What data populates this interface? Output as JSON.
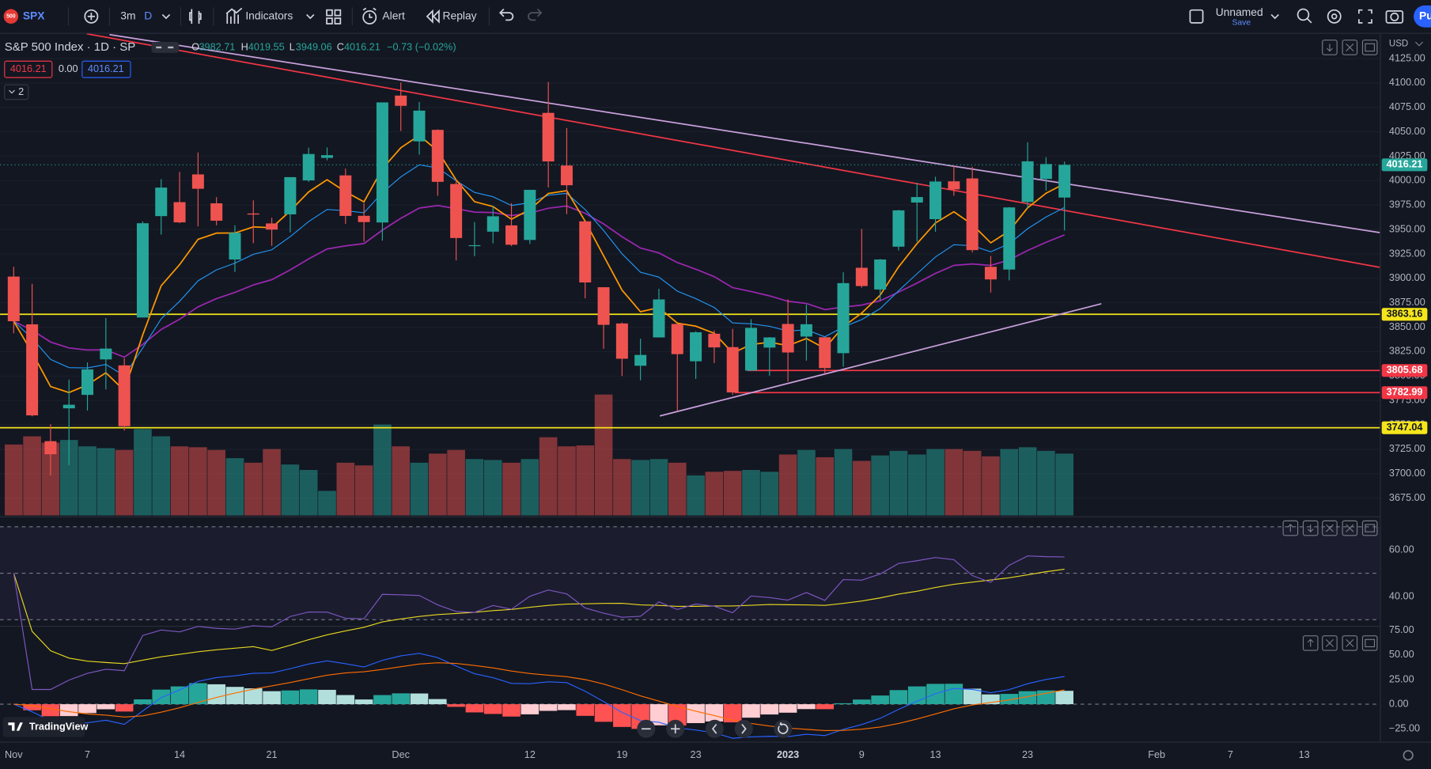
{
  "toolbar": {
    "badge": "500",
    "symbol": "SPX",
    "interval": "3m",
    "interval_unit": "D",
    "indicators": "Indicators",
    "alert": "Alert",
    "replay": "Replay",
    "layout_name": "Unnamed",
    "layout_save": "Save",
    "publish": "Pu"
  },
  "legend": {
    "title": "S&P 500 Index · 1D · SP",
    "ohlc": [
      {
        "key": "O",
        "value": "3982.71"
      },
      {
        "key": "H",
        "value": "4019.55"
      },
      {
        "key": "L",
        "value": "3949.06"
      },
      {
        "key": "C",
        "value": "4016.21"
      }
    ],
    "change": "−0.73 (−0.02%)",
    "bid": "4016.21",
    "spread": "0.00",
    "ask": "4016.21",
    "studies": "2"
  },
  "branding": "TradingView",
  "chart_data": [
    {
      "type": "candlestick",
      "currency": "USD",
      "categories": [
        "Nov",
        null,
        null,
        null,
        "7",
        null,
        null,
        null,
        null,
        "14",
        null,
        null,
        null,
        null,
        "21",
        null,
        null,
        null,
        null,
        null,
        null,
        "Dec",
        null,
        null,
        null,
        null,
        null,
        null,
        "12",
        null,
        null,
        null,
        null,
        "19",
        null,
        null,
        null,
        "23",
        null,
        null,
        null,
        null,
        "2023",
        null,
        null,
        null,
        "9",
        null,
        null,
        null,
        "13",
        null,
        null,
        null,
        null,
        "23",
        null,
        null,
        null,
        null,
        null,
        null,
        "Feb",
        null,
        null,
        null,
        "7",
        null,
        null,
        null,
        "13"
      ],
      "open": [
        3901.8,
        3852.9,
        3733.3,
        3766.9,
        3780.7,
        3817,
        3810.9,
        3859.9,
        3963.7,
        3978,
        4006.4,
        3976.8,
        3919.3,
        3966.4,
        3956.2,
        3965.5,
        4000.3,
        4023.3,
        4005.4,
        3964,
        3957.2,
        4087.1,
        4040.2,
        4052,
        3996.6,
        3933.3,
        3947.8,
        3954.2,
        3939.3,
        4069.4,
        4015.5,
        3958.4,
        3890.9,
        3853.8,
        3810.5,
        3839.5,
        3853.3,
        3815.1,
        3843.3,
        3829.6,
        3805.5,
        3829.1,
        3853.3,
        3840.4,
        3839.7,
        3823.4,
        3910.8,
        3888.6,
        3932.4,
        3977.6,
        3960.6,
        3999.3,
        4002.3,
        3911.8,
        3909,
        3978.1,
        4001.7,
        3982.71,
        null,
        null,
        null,
        null,
        null,
        null,
        null,
        null,
        null,
        null,
        null,
        null,
        null
      ],
      "high": [
        3911.8,
        3894.4,
        3750.6,
        3796.3,
        3813.9,
        3859.4,
        3818.2,
        3958.3,
        4001.5,
        4009,
        4028.8,
        3983.1,
        3954.3,
        3979.9,
        3962,
        4003.5,
        4033.8,
        4034,
        4012.3,
        3976.8,
        4080.1,
        4100.5,
        4080.5,
        4052.5,
        4001.5,
        3957.6,
        3974.2,
        3977,
        3990.7,
        4101,
        4053.8,
        3958.4,
        3890.9,
        3854.9,
        3838.2,
        3889.3,
        3853.3,
        3845.8,
        3846.7,
        3848.3,
        3858.2,
        3839.9,
        3878.5,
        3873.2,
        3839.7,
        3906.2,
        3950.6,
        3919.8,
        3970.1,
        3997.8,
        4004,
        4015.4,
        4014.2,
        3922.9,
        3973,
        4039.3,
        4023.9,
        4019.55,
        null,
        null,
        null,
        null,
        null,
        null,
        null,
        null,
        null,
        null,
        null,
        null,
        null
      ],
      "low": [
        3843.8,
        3758.7,
        3698.2,
        3708.8,
        3764.7,
        3786.3,
        3744.2,
        3859.9,
        3944.8,
        3956.4,
        3953.2,
        3954.3,
        3906.5,
        3936,
        3933.3,
        3947,
        3998.7,
        4020.8,
        3955.8,
        3937.7,
        3938.6,
        4050.9,
        4026.6,
        3984.5,
        3918.4,
        3922.7,
        3935.8,
        3933,
        3935.3,
        3993,
        3965.7,
        3879.5,
        3827.9,
        3800,
        3795.6,
        3839.5,
        3764.5,
        3797,
        3813.2,
        3780.8,
        3805.5,
        3800.3,
        3794.3,
        3815.8,
        3802.4,
        3809.6,
        3890.4,
        3877.3,
        3928.5,
        3937.6,
        3947.7,
        3984.6,
        3926.6,
        3885.5,
        3897.9,
        3971.6,
        3989.8,
        3949.06,
        null,
        null,
        null,
        null,
        null,
        null,
        null,
        null,
        null,
        null,
        null,
        null,
        null
      ],
      "close": [
        3856.1,
        3759.7,
        3719.9,
        3770.6,
        3806.8,
        3828.1,
        3748.6,
        3956.4,
        3992.9,
        3957.3,
        3991.7,
        3959,
        3946.6,
        3965.3,
        3949.9,
        4003.6,
        4027.3,
        4026.1,
        3963.9,
        3957.6,
        4080.1,
        4076.6,
        4071.7,
        3998.8,
        3941.3,
        3933.9,
        3963.5,
        3934.4,
        3990.6,
        4019.7,
        3995.3,
        3895.8,
        3852.4,
        3817.7,
        3821.6,
        3878.4,
        3822.4,
        3844.8,
        3829.3,
        3783.2,
        3849.3,
        3839.5,
        3824.1,
        3853,
        3808.1,
        3895.1,
        3892.1,
        3919.3,
        3969.6,
        3983.2,
        3999.1,
        3991,
        3928.9,
        3898.9,
        3972.6,
        4019.8,
        4017,
        4016.21,
        null,
        null,
        null,
        null,
        null,
        null,
        null,
        null,
        null,
        null,
        null,
        null,
        null
      ],
      "volume": [
        78,
        87,
        80,
        83,
        76,
        74,
        72,
        95,
        87,
        76,
        75,
        72,
        63,
        58,
        73,
        56,
        50,
        27,
        58,
        55,
        100,
        76,
        58,
        68,
        72,
        62,
        61,
        58,
        62,
        86,
        76,
        77,
        133,
        62,
        61,
        62,
        58,
        44,
        48,
        49,
        50,
        48,
        67,
        72,
        64,
        73,
        60,
        66,
        71,
        67,
        73,
        73,
        71,
        65,
        73,
        75,
        71,
        68,
        null,
        null,
        null,
        null,
        null,
        null,
        null,
        null,
        null,
        null,
        null,
        null,
        null
      ],
      "volume_lim": [
        0,
        530
      ],
      "ylim": [
        3657.3,
        4150.4
      ],
      "yticks": [
        {
          "value": 4125,
          "label": "4125.00"
        },
        {
          "value": 4100,
          "label": "4100.00"
        },
        {
          "value": 4075,
          "label": "4075.00"
        },
        {
          "value": 4050,
          "label": "4050.00"
        },
        {
          "value": 4025,
          "label": "4025.00"
        },
        {
          "value": 4000,
          "label": "4000.00"
        },
        {
          "value": 3975,
          "label": "3975.00"
        },
        {
          "value": 3950,
          "label": "3950.00"
        },
        {
          "value": 3925,
          "label": "3925.00"
        },
        {
          "value": 3900,
          "label": "3900.00"
        },
        {
          "value": 3875,
          "label": "3875.00"
        },
        {
          "value": 3850,
          "label": "3850.00"
        },
        {
          "value": 3825,
          "label": "3825.00"
        },
        {
          "value": 3800,
          "label": "3800.00"
        },
        {
          "value": 3775,
          "label": "3775.00"
        },
        {
          "value": 3750,
          "label": "3750.00"
        },
        {
          "value": 3725,
          "label": "3725.00"
        },
        {
          "value": 3700,
          "label": "3700.00"
        },
        {
          "value": 3675,
          "label": "3675.00"
        }
      ],
      "up_color": "#26a69a",
      "down_color": "#ef5350",
      "last_price": 4016.21,
      "price_lines": [
        {
          "price": 3863.16,
          "color": "#f5e51b",
          "from": -1
        },
        {
          "price": 3805.68,
          "color": "#f23645",
          "from": 39.8
        },
        {
          "price": 3782.99,
          "color": "#f23645",
          "from": 39.1
        },
        {
          "price": 3747.04,
          "color": "#f5e51b",
          "from": -1
        }
      ],
      "trendlines": [
        {
          "color": "#c9a0dc",
          "points": [
            [
              5.2,
              4149.5
            ],
            [
              74.1,
              3946.8
            ]
          ]
        },
        {
          "color": "#f23645",
          "points": [
            [
              3.96,
              4150.4
            ],
            [
              74.1,
              3911.3
            ]
          ]
        },
        {
          "color": "#c9a0dc",
          "points": [
            [
              35.05,
              3759.1
            ],
            [
              59,
              3874
            ]
          ]
        }
      ]
    },
    {
      "type": "rsi",
      "ylim": [
        27.8,
        74.5
      ],
      "yticks": [
        {
          "value": 60,
          "label": "60.00"
        },
        {
          "value": 40,
          "label": "40.00"
        }
      ],
      "bands": [
        70,
        50,
        30
      ],
      "color": "#7e57c2",
      "ma_color": "#e8d81f"
    },
    {
      "type": "macd",
      "ylim": [
        -38,
        79.6
      ],
      "yticks": [
        {
          "value": 75,
          "label": "75.00"
        },
        {
          "value": 50,
          "label": "50.00"
        },
        {
          "value": 25,
          "label": "25.00"
        },
        {
          "value": 0,
          "label": "0.00"
        },
        {
          "value": -25,
          "label": "−25.00"
        }
      ],
      "macd_color": "#2962ff",
      "signal_color": "#ff6d00"
    }
  ]
}
